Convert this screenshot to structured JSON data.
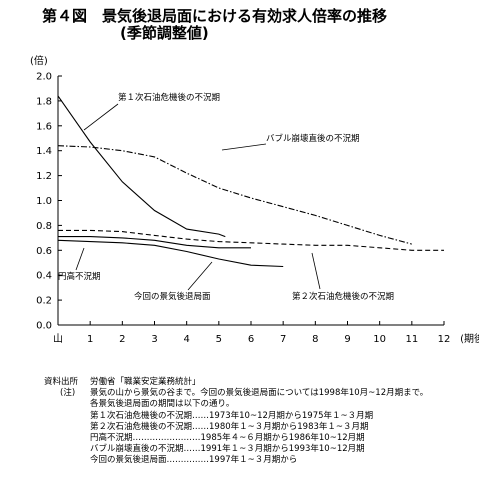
{
  "title": {
    "line1": "第４図　景気後退局面における有効求人倍率の推移",
    "line2": "(季節調整値)"
  },
  "notes": {
    "source_key": "資料出所",
    "source_text": "労働省「職業安定業務統計」",
    "note_key": "(注)",
    "note_lines": [
      "景気の山から景気の谷まで。今回の景気後退局面については1998年10月~12月期まで。",
      "各景気後退局面の期間は以下の通り。",
      "第１次石油危機後の不況期……1973年10~12月期から1975年１~３月期",
      "第２次石油危機後の不況期……1980年１~３月期から1983年１~３月期",
      "円高不況期……………………1985年４~６月期から1986年10~12月期",
      "バブル崩壊直後の不況期……1991年１~３月期から1993年10~12月期",
      "今回の景気後退局面……………1997年１~３月期から"
    ]
  },
  "chart_data": {
    "type": "line",
    "title": "",
    "ylabel": "(倍)",
    "xlabel": "(期後)",
    "ylim": [
      0,
      2.0
    ],
    "xlim": [
      0,
      12
    ],
    "y_ticks": [
      "0.0",
      "0.2",
      "0.4",
      "0.6",
      "0.8",
      "1.0",
      "1.2",
      "1.4",
      "1.6",
      "1.8",
      "2.0"
    ],
    "x_ticks": [
      "山",
      "1",
      "2",
      "3",
      "4",
      "5",
      "6",
      "7",
      "8",
      "9",
      "10",
      "11",
      "12"
    ],
    "series": [
      {
        "name": "第１次石油危機後の不況期",
        "style": "solid",
        "x": [
          0,
          1,
          2,
          3,
          4,
          5,
          5.2
        ],
        "y": [
          1.84,
          1.47,
          1.15,
          0.92,
          0.77,
          0.73,
          0.71
        ]
      },
      {
        "name": "バブル崩壊直後の不況期",
        "style": "dashdot",
        "x": [
          0,
          1,
          2,
          3,
          4,
          5,
          6,
          7,
          8,
          9,
          10,
          11
        ],
        "y": [
          1.44,
          1.43,
          1.4,
          1.35,
          1.22,
          1.1,
          1.02,
          0.95,
          0.88,
          0.8,
          0.72,
          0.65
        ]
      },
      {
        "name": "第２次石油危機後の不況期",
        "style": "dashed",
        "x": [
          0,
          1,
          2,
          3,
          4,
          5,
          6,
          7,
          8,
          9,
          10,
          11,
          12
        ],
        "y": [
          0.76,
          0.76,
          0.75,
          0.72,
          0.69,
          0.67,
          0.66,
          0.65,
          0.64,
          0.64,
          0.62,
          0.6,
          0.6
        ]
      },
      {
        "name": "円高不況期",
        "style": "solid",
        "x": [
          0,
          1,
          2,
          3,
          4,
          5,
          6
        ],
        "y": [
          0.71,
          0.71,
          0.7,
          0.68,
          0.64,
          0.62,
          0.62
        ]
      },
      {
        "name": "今回の景気後退局面",
        "style": "solid",
        "x": [
          0,
          1,
          2,
          3,
          4,
          5,
          6,
          7
        ],
        "y": [
          0.68,
          0.67,
          0.66,
          0.64,
          0.59,
          0.53,
          0.48,
          0.47
        ]
      }
    ],
    "annotations": [
      {
        "text": "第１次石油危機後の不況期",
        "series": 0
      },
      {
        "text": "バブル崩壊直後の不況期",
        "series": 1
      },
      {
        "text": "円高不況期",
        "series": 3
      },
      {
        "text": "今回の景気後退局面",
        "series": 4
      },
      {
        "text": "第２次石油危機後の不況期",
        "series": 2
      }
    ],
    "grid": false,
    "legend": "none"
  }
}
